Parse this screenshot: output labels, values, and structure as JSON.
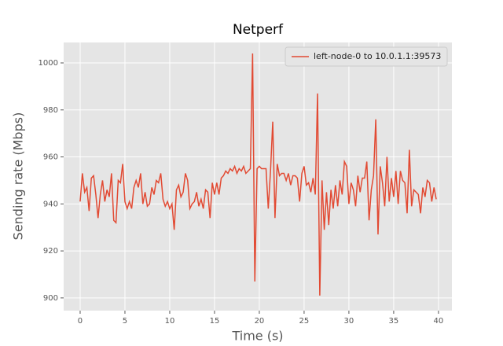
{
  "chart_data": {
    "type": "line",
    "title": "Netperf",
    "xlabel": "Time (s)",
    "ylabel": "Sending rate (Mbps)",
    "x": [
      0,
      0.25,
      0.5,
      0.75,
      1,
      1.25,
      1.5,
      1.75,
      2,
      2.25,
      2.5,
      2.75,
      3,
      3.25,
      3.5,
      3.75,
      4,
      4.25,
      4.5,
      4.75,
      5,
      5.25,
      5.5,
      5.75,
      6,
      6.25,
      6.5,
      6.75,
      7,
      7.25,
      7.5,
      7.75,
      8,
      8.25,
      8.5,
      8.75,
      9,
      9.25,
      9.5,
      9.75,
      10,
      10.25,
      10.5,
      10.75,
      11,
      11.25,
      11.5,
      11.75,
      12,
      12.25,
      12.5,
      12.75,
      13,
      13.25,
      13.5,
      13.75,
      14,
      14.25,
      14.5,
      14.75,
      15,
      15.25,
      15.5,
      15.75,
      16,
      16.25,
      16.5,
      16.75,
      17,
      17.25,
      17.5,
      17.75,
      18,
      18.25,
      18.5,
      18.75,
      19,
      19.25,
      19.5,
      19.75,
      20,
      20.25,
      20.5,
      20.75,
      21,
      21.25,
      21.5,
      21.75,
      22,
      22.25,
      22.5,
      22.75,
      23,
      23.25,
      23.5,
      23.75,
      24,
      24.25,
      24.5,
      24.75,
      25,
      25.25,
      25.5,
      25.75,
      26,
      26.25,
      26.5,
      26.75,
      27,
      27.25,
      27.5,
      27.75,
      28,
      28.25,
      28.5,
      28.75,
      29,
      29.25,
      29.5,
      29.75,
      30,
      30.25,
      30.5,
      30.75,
      31,
      31.25,
      31.5,
      31.75,
      32,
      32.25,
      32.5,
      32.75,
      33,
      33.25,
      33.5,
      33.75,
      34,
      34.25,
      34.5,
      34.75,
      35,
      35.25,
      35.5,
      35.75,
      36,
      36.25,
      36.5,
      36.75,
      37,
      37.25,
      37.5,
      37.75,
      38,
      38.25,
      38.5,
      38.75,
      39,
      39.25,
      39.5,
      39.75
    ],
    "series": [
      {
        "name": "left-node-0 to 10.0.1.1:39573",
        "color": "#e24a33",
        "values": [
          941,
          953,
          945,
          947,
          937,
          951,
          952,
          944,
          934,
          944,
          950,
          941,
          946,
          943,
          953,
          933,
          932,
          950,
          949,
          957,
          941,
          938,
          941,
          938,
          947,
          950,
          947,
          953,
          940,
          945,
          939,
          940,
          947,
          944,
          950,
          949,
          953,
          942,
          939,
          941,
          938,
          940,
          929,
          946,
          948,
          943,
          945,
          953,
          950,
          938,
          940,
          941,
          945,
          939,
          942,
          938,
          946,
          945,
          934,
          949,
          944,
          949,
          944,
          951,
          952,
          954,
          953,
          955,
          954,
          956,
          953,
          955,
          954,
          956,
          953,
          954,
          955,
          1004,
          907,
          955,
          956,
          955,
          955,
          955,
          938,
          954,
          975,
          934,
          957,
          952,
          953,
          953,
          950,
          953,
          948,
          952,
          952,
          951,
          941,
          953,
          956,
          948,
          949,
          945,
          951,
          944,
          987,
          901,
          950,
          929,
          945,
          931,
          946,
          938,
          948,
          939,
          950,
          944,
          958,
          956,
          940,
          949,
          946,
          939,
          952,
          945,
          951,
          951,
          958,
          933,
          946,
          952,
          976,
          927,
          956,
          949,
          939,
          960,
          941,
          951,
          943,
          954,
          940,
          954,
          950,
          949,
          936,
          963,
          939,
          946,
          945,
          944,
          936,
          947,
          943,
          950,
          949,
          941,
          947,
          942
        ]
      }
    ],
    "xlim": [
      -1.84,
      41.5
    ],
    "xticks": [
      0,
      5,
      10,
      15,
      20,
      25,
      30,
      35,
      40
    ],
    "ylim": [
      894.6,
      1008.7
    ],
    "yticks": [
      900,
      920,
      940,
      960,
      980,
      1000
    ],
    "grid": true,
    "legend": "upper right"
  }
}
